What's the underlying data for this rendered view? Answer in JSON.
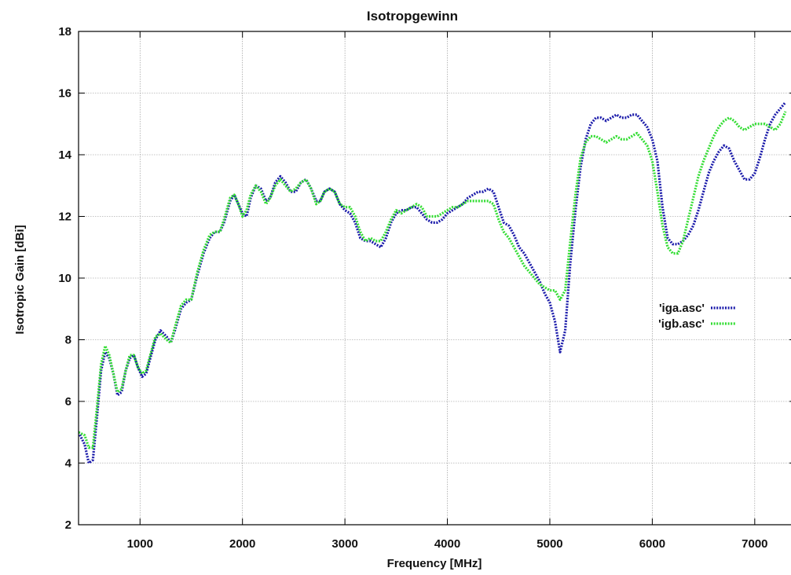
{
  "chart_data": {
    "type": "line",
    "title": "Isotropgewinn",
    "xlabel": "Frequency [MHz]",
    "ylabel": "Isotropic Gain [dBi]",
    "xlim": [
      400,
      7400
    ],
    "ylim": [
      2,
      18
    ],
    "grid": true,
    "legend_position": "right",
    "x_ticks": [
      1000,
      2000,
      3000,
      4000,
      5000,
      6000,
      7000
    ],
    "x_tick_labels": [
      "1000",
      "2000",
      "3000",
      "4000",
      "5000",
      "6000",
      "7000"
    ],
    "y_ticks": [
      2,
      4,
      6,
      8,
      10,
      12,
      14,
      16,
      18
    ],
    "y_tick_labels": [
      "2",
      "4",
      "6",
      "8",
      "10",
      "12",
      "14",
      "16",
      "18"
    ],
    "series": [
      {
        "name": "'iga.asc'",
        "color": "#1a1aaa",
        "points": [
          [
            400,
            5.0
          ],
          [
            460,
            4.6
          ],
          [
            500,
            4.0
          ],
          [
            540,
            4.1
          ],
          [
            580,
            5.5
          ],
          [
            620,
            7.0
          ],
          [
            660,
            7.6
          ],
          [
            700,
            7.4
          ],
          [
            740,
            6.9
          ],
          [
            780,
            6.2
          ],
          [
            820,
            6.3
          ],
          [
            860,
            7.0
          ],
          [
            900,
            7.4
          ],
          [
            940,
            7.5
          ],
          [
            980,
            7.1
          ],
          [
            1020,
            6.8
          ],
          [
            1060,
            6.9
          ],
          [
            1100,
            7.4
          ],
          [
            1150,
            8.0
          ],
          [
            1200,
            8.3
          ],
          [
            1260,
            8.1
          ],
          [
            1300,
            7.9
          ],
          [
            1340,
            8.3
          ],
          [
            1400,
            9.0
          ],
          [
            1450,
            9.2
          ],
          [
            1500,
            9.3
          ],
          [
            1560,
            10.1
          ],
          [
            1620,
            10.8
          ],
          [
            1680,
            11.3
          ],
          [
            1730,
            11.5
          ],
          [
            1780,
            11.5
          ],
          [
            1820,
            11.8
          ],
          [
            1880,
            12.5
          ],
          [
            1920,
            12.7
          ],
          [
            1960,
            12.4
          ],
          [
            2000,
            12.1
          ],
          [
            2040,
            12.0
          ],
          [
            2080,
            12.6
          ],
          [
            2130,
            13.0
          ],
          [
            2180,
            12.9
          ],
          [
            2230,
            12.5
          ],
          [
            2270,
            12.6
          ],
          [
            2320,
            13.1
          ],
          [
            2370,
            13.3
          ],
          [
            2420,
            13.1
          ],
          [
            2470,
            12.8
          ],
          [
            2520,
            12.8
          ],
          [
            2570,
            13.1
          ],
          [
            2620,
            13.2
          ],
          [
            2670,
            12.9
          ],
          [
            2720,
            12.5
          ],
          [
            2760,
            12.5
          ],
          [
            2800,
            12.8
          ],
          [
            2850,
            12.9
          ],
          [
            2900,
            12.8
          ],
          [
            2950,
            12.4
          ],
          [
            3000,
            12.2
          ],
          [
            3050,
            12.1
          ],
          [
            3100,
            11.8
          ],
          [
            3150,
            11.3
          ],
          [
            3200,
            11.2
          ],
          [
            3250,
            11.2
          ],
          [
            3300,
            11.1
          ],
          [
            3350,
            11.0
          ],
          [
            3400,
            11.3
          ],
          [
            3450,
            11.8
          ],
          [
            3500,
            12.1
          ],
          [
            3550,
            12.2
          ],
          [
            3600,
            12.2
          ],
          [
            3650,
            12.3
          ],
          [
            3700,
            12.3
          ],
          [
            3750,
            12.1
          ],
          [
            3800,
            11.9
          ],
          [
            3850,
            11.8
          ],
          [
            3900,
            11.8
          ],
          [
            3950,
            11.9
          ],
          [
            4000,
            12.1
          ],
          [
            4050,
            12.2
          ],
          [
            4100,
            12.3
          ],
          [
            4150,
            12.4
          ],
          [
            4200,
            12.6
          ],
          [
            4250,
            12.7
          ],
          [
            4300,
            12.8
          ],
          [
            4350,
            12.8
          ],
          [
            4400,
            12.9
          ],
          [
            4450,
            12.8
          ],
          [
            4500,
            12.3
          ],
          [
            4550,
            11.8
          ],
          [
            4600,
            11.7
          ],
          [
            4650,
            11.4
          ],
          [
            4700,
            11.0
          ],
          [
            4750,
            10.8
          ],
          [
            4800,
            10.5
          ],
          [
            4850,
            10.2
          ],
          [
            4900,
            9.9
          ],
          [
            4950,
            9.5
          ],
          [
            5000,
            9.2
          ],
          [
            5050,
            8.6
          ],
          [
            5100,
            7.6
          ],
          [
            5150,
            8.3
          ],
          [
            5200,
            10.5
          ],
          [
            5250,
            12.2
          ],
          [
            5300,
            13.6
          ],
          [
            5350,
            14.5
          ],
          [
            5400,
            15.0
          ],
          [
            5450,
            15.2
          ],
          [
            5500,
            15.2
          ],
          [
            5550,
            15.1
          ],
          [
            5600,
            15.2
          ],
          [
            5650,
            15.3
          ],
          [
            5700,
            15.2
          ],
          [
            5750,
            15.2
          ],
          [
            5800,
            15.3
          ],
          [
            5850,
            15.3
          ],
          [
            5900,
            15.1
          ],
          [
            5950,
            14.9
          ],
          [
            6000,
            14.5
          ],
          [
            6050,
            13.8
          ],
          [
            6100,
            12.3
          ],
          [
            6150,
            11.3
          ],
          [
            6200,
            11.1
          ],
          [
            6250,
            11.1
          ],
          [
            6300,
            11.2
          ],
          [
            6350,
            11.4
          ],
          [
            6400,
            11.7
          ],
          [
            6450,
            12.2
          ],
          [
            6500,
            12.8
          ],
          [
            6550,
            13.4
          ],
          [
            6600,
            13.8
          ],
          [
            6650,
            14.1
          ],
          [
            6700,
            14.3
          ],
          [
            6750,
            14.2
          ],
          [
            6800,
            13.8
          ],
          [
            6850,
            13.5
          ],
          [
            6900,
            13.2
          ],
          [
            6950,
            13.2
          ],
          [
            7000,
            13.4
          ],
          [
            7050,
            13.9
          ],
          [
            7100,
            14.5
          ],
          [
            7150,
            15.0
          ],
          [
            7200,
            15.3
          ],
          [
            7250,
            15.5
          ],
          [
            7300,
            15.7
          ]
        ]
      },
      {
        "name": "'igb.asc'",
        "color": "#33dd33",
        "points": [
          [
            400,
            5.0
          ],
          [
            460,
            4.9
          ],
          [
            500,
            4.5
          ],
          [
            540,
            4.5
          ],
          [
            580,
            5.8
          ],
          [
            620,
            7.2
          ],
          [
            660,
            7.8
          ],
          [
            700,
            7.5
          ],
          [
            740,
            6.9
          ],
          [
            780,
            6.3
          ],
          [
            820,
            6.4
          ],
          [
            860,
            7.0
          ],
          [
            900,
            7.5
          ],
          [
            940,
            7.5
          ],
          [
            980,
            7.1
          ],
          [
            1020,
            6.9
          ],
          [
            1060,
            7.0
          ],
          [
            1100,
            7.5
          ],
          [
            1150,
            8.1
          ],
          [
            1200,
            8.2
          ],
          [
            1260,
            8.0
          ],
          [
            1300,
            7.9
          ],
          [
            1340,
            8.4
          ],
          [
            1400,
            9.1
          ],
          [
            1450,
            9.3
          ],
          [
            1500,
            9.3
          ],
          [
            1560,
            10.2
          ],
          [
            1620,
            10.9
          ],
          [
            1680,
            11.4
          ],
          [
            1730,
            11.5
          ],
          [
            1780,
            11.5
          ],
          [
            1820,
            11.9
          ],
          [
            1880,
            12.6
          ],
          [
            1920,
            12.7
          ],
          [
            1960,
            12.4
          ],
          [
            2000,
            12.0
          ],
          [
            2040,
            12.2
          ],
          [
            2080,
            12.7
          ],
          [
            2130,
            13.0
          ],
          [
            2180,
            12.8
          ],
          [
            2230,
            12.4
          ],
          [
            2270,
            12.6
          ],
          [
            2320,
            13.0
          ],
          [
            2370,
            13.2
          ],
          [
            2420,
            13.0
          ],
          [
            2470,
            12.8
          ],
          [
            2520,
            12.9
          ],
          [
            2570,
            13.1
          ],
          [
            2620,
            13.2
          ],
          [
            2670,
            12.9
          ],
          [
            2720,
            12.4
          ],
          [
            2760,
            12.5
          ],
          [
            2800,
            12.8
          ],
          [
            2850,
            12.9
          ],
          [
            2900,
            12.8
          ],
          [
            2950,
            12.4
          ],
          [
            3000,
            12.3
          ],
          [
            3050,
            12.3
          ],
          [
            3100,
            12.0
          ],
          [
            3150,
            11.5
          ],
          [
            3200,
            11.2
          ],
          [
            3250,
            11.3
          ],
          [
            3300,
            11.2
          ],
          [
            3350,
            11.2
          ],
          [
            3400,
            11.5
          ],
          [
            3450,
            11.9
          ],
          [
            3500,
            12.2
          ],
          [
            3550,
            12.1
          ],
          [
            3600,
            12.2
          ],
          [
            3650,
            12.3
          ],
          [
            3700,
            12.4
          ],
          [
            3750,
            12.3
          ],
          [
            3800,
            12.0
          ],
          [
            3850,
            12.0
          ],
          [
            3900,
            12.0
          ],
          [
            3950,
            12.1
          ],
          [
            4000,
            12.2
          ],
          [
            4050,
            12.3
          ],
          [
            4100,
            12.3
          ],
          [
            4150,
            12.4
          ],
          [
            4200,
            12.5
          ],
          [
            4250,
            12.5
          ],
          [
            4300,
            12.5
          ],
          [
            4350,
            12.5
          ],
          [
            4400,
            12.5
          ],
          [
            4450,
            12.4
          ],
          [
            4500,
            11.9
          ],
          [
            4550,
            11.5
          ],
          [
            4600,
            11.3
          ],
          [
            4650,
            11.0
          ],
          [
            4700,
            10.7
          ],
          [
            4750,
            10.4
          ],
          [
            4800,
            10.2
          ],
          [
            4850,
            10.0
          ],
          [
            4900,
            9.8
          ],
          [
            4950,
            9.7
          ],
          [
            5000,
            9.6
          ],
          [
            5050,
            9.6
          ],
          [
            5100,
            9.3
          ],
          [
            5150,
            9.6
          ],
          [
            5200,
            11.2
          ],
          [
            5250,
            12.7
          ],
          [
            5300,
            13.9
          ],
          [
            5350,
            14.4
          ],
          [
            5400,
            14.6
          ],
          [
            5450,
            14.6
          ],
          [
            5500,
            14.5
          ],
          [
            5550,
            14.4
          ],
          [
            5600,
            14.5
          ],
          [
            5650,
            14.6
          ],
          [
            5700,
            14.5
          ],
          [
            5750,
            14.5
          ],
          [
            5800,
            14.6
          ],
          [
            5850,
            14.7
          ],
          [
            5900,
            14.5
          ],
          [
            5950,
            14.3
          ],
          [
            6000,
            13.8
          ],
          [
            6050,
            12.8
          ],
          [
            6100,
            11.7
          ],
          [
            6150,
            11.0
          ],
          [
            6200,
            10.8
          ],
          [
            6250,
            10.8
          ],
          [
            6300,
            11.2
          ],
          [
            6350,
            11.9
          ],
          [
            6400,
            12.6
          ],
          [
            6450,
            13.3
          ],
          [
            6500,
            13.8
          ],
          [
            6550,
            14.2
          ],
          [
            6600,
            14.6
          ],
          [
            6650,
            14.9
          ],
          [
            6700,
            15.1
          ],
          [
            6750,
            15.2
          ],
          [
            6800,
            15.1
          ],
          [
            6850,
            14.9
          ],
          [
            6900,
            14.8
          ],
          [
            6950,
            14.9
          ],
          [
            7000,
            15.0
          ],
          [
            7050,
            15.0
          ],
          [
            7100,
            15.0
          ],
          [
            7150,
            14.9
          ],
          [
            7200,
            14.8
          ],
          [
            7250,
            15.0
          ],
          [
            7300,
            15.4
          ]
        ]
      }
    ]
  }
}
